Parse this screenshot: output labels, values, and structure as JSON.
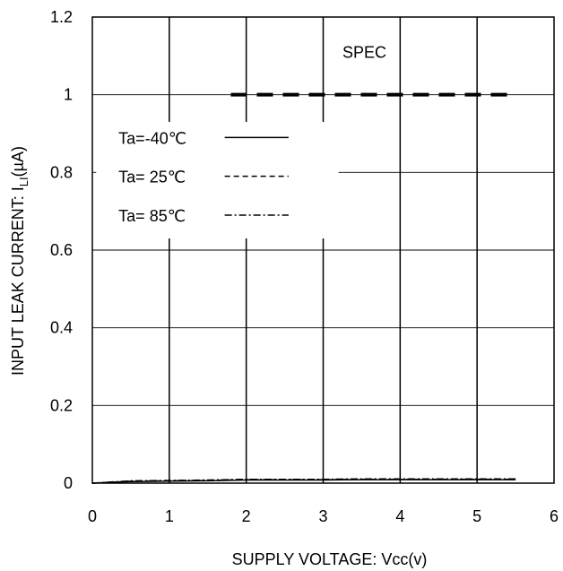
{
  "chart_data": {
    "type": "line",
    "xlabel": "SUPPLY VOLTAGE: Vcc(v)",
    "ylabel": "INPUT LEAK CURRENT: I",
    "ylabel_sub": "LI",
    "ylabel_unit": "(µA)",
    "xlim": [
      0,
      6
    ],
    "ylim": [
      0,
      1.2
    ],
    "x_ticks": [
      0,
      1,
      2,
      3,
      4,
      5,
      6
    ],
    "x_tick_labels": [
      "0",
      "1",
      "2",
      "3",
      "4",
      "5",
      "6"
    ],
    "y_ticks": [
      0,
      0.2,
      0.4,
      0.6,
      0.8,
      1.0,
      1.2
    ],
    "y_tick_labels": [
      "0",
      "0.2",
      "0.4",
      "0.6",
      "0.8",
      "1",
      "1.2"
    ],
    "grid": true,
    "legend_position": "upper-left",
    "series": [
      {
        "name": "Ta=-40℃",
        "style": "solid",
        "x": [
          0,
          0.5,
          1.0,
          1.5,
          2.0,
          2.5,
          3.0,
          3.5,
          4.0,
          4.5,
          5.0,
          5.5
        ],
        "y": [
          0.0,
          0.004,
          0.005,
          0.006,
          0.008,
          0.008,
          0.008,
          0.009,
          0.009,
          0.009,
          0.009,
          0.009
        ]
      },
      {
        "name": "Ta= 25℃",
        "style": "dashed",
        "x": [
          0,
          0.5,
          1.0,
          1.5,
          2.0,
          2.5,
          3.0,
          3.5,
          4.0,
          4.5,
          5.0,
          5.5
        ],
        "y": [
          0.0,
          0.005,
          0.006,
          0.007,
          0.009,
          0.009,
          0.009,
          0.01,
          0.01,
          0.01,
          0.01,
          0.01
        ]
      },
      {
        "name": "Ta= 85℃",
        "style": "dashdot",
        "x": [
          0,
          0.5,
          1.0,
          1.5,
          2.0,
          2.5,
          3.0,
          3.5,
          4.0,
          4.5,
          5.0,
          5.5
        ],
        "y": [
          0.0,
          0.006,
          0.007,
          0.008,
          0.01,
          0.01,
          0.01,
          0.011,
          0.011,
          0.011,
          0.011,
          0.011
        ]
      }
    ],
    "spec": {
      "label": "SPEC",
      "y": 1.0,
      "x_start": 1.8,
      "x_end": 5.4
    }
  }
}
